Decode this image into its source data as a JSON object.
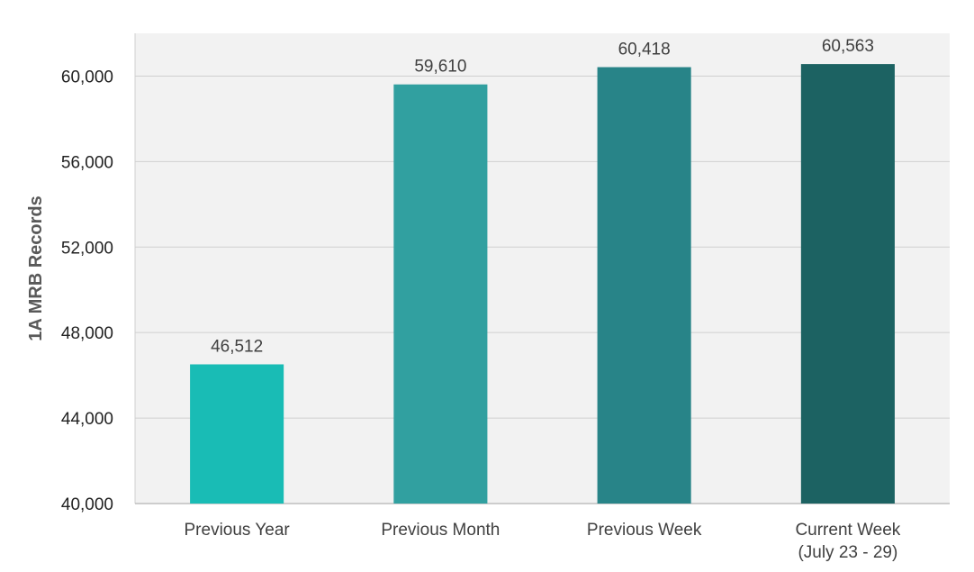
{
  "chart_data": {
    "type": "bar",
    "title": "",
    "xlabel": "",
    "ylabel": "1A MRB Records",
    "ylim": [
      40000,
      62000
    ],
    "yticks": [
      40000,
      44000,
      48000,
      52000,
      56000,
      60000
    ],
    "grid": true,
    "legend": "none",
    "categories": [
      [
        "Previous Year"
      ],
      [
        "Previous Month"
      ],
      [
        "Previous Week"
      ],
      [
        "Current Week",
        "(July 23 - 29)"
      ]
    ],
    "values": [
      46512,
      59610,
      60418,
      60563
    ],
    "bar_colors": [
      "#19BCB5",
      "#31A0A0",
      "#288488",
      "#1C6262"
    ],
    "plot_background": "#F2F2F2",
    "gridline_color": "#D0D0D0"
  }
}
